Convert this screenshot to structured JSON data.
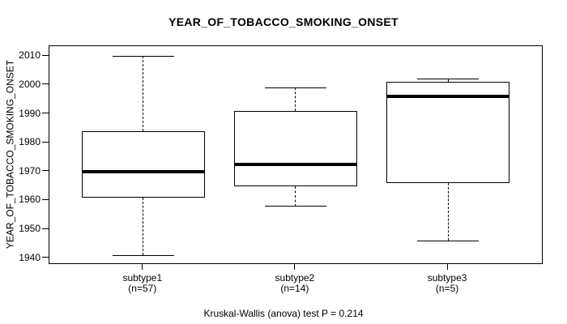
{
  "chart_data": {
    "type": "boxplot",
    "title": "YEAR_OF_TOBACCO_SMOKING_ONSET",
    "ylabel": "YEAR_OF_TOBACCO_SMOKING_ONSET",
    "xlabel": "",
    "caption": "Kruskal-Wallis (anova) test P = 0.214",
    "ylim": [
      1937.5,
      2013.5
    ],
    "yticks": [
      1940,
      1950,
      1960,
      1970,
      1980,
      1990,
      2000,
      2010
    ],
    "grid": false,
    "legend": "none",
    "categories": [
      "subtype1",
      "subtype2",
      "subtype3"
    ],
    "category_sublabels": [
      "(n=57)",
      "(n=14)",
      "(n=5)"
    ],
    "series": [
      {
        "name": "subtype1",
        "n": 57,
        "whisker_low": 1941,
        "q1": 1961,
        "median": 1970,
        "q3": 1984,
        "whisker_high": 2010
      },
      {
        "name": "subtype2",
        "n": 14,
        "whisker_low": 1958,
        "q1": 1965,
        "median": 1972.5,
        "q3": 1991,
        "whisker_high": 1999
      },
      {
        "name": "subtype3",
        "n": 5,
        "whisker_low": 1946,
        "q1": 1966,
        "median": 1996,
        "q3": 2001,
        "whisker_high": 2002
      }
    ]
  },
  "colors": {
    "line": "#000000",
    "background": "#ffffff"
  }
}
